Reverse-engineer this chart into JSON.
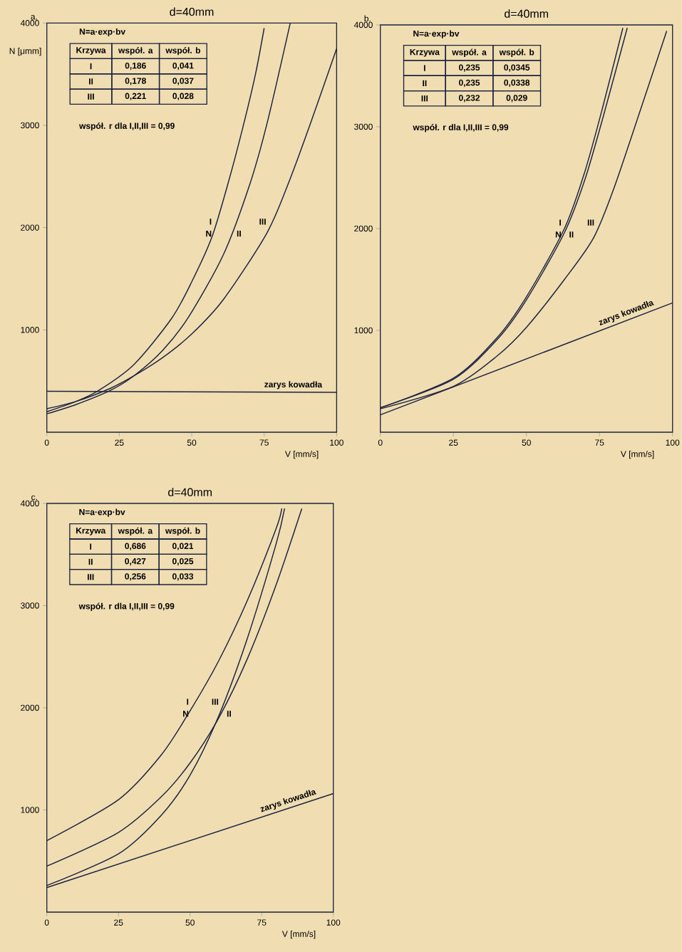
{
  "chart_data": [
    {
      "type": "line",
      "title": "d=40mm",
      "xlabel": "V [mm/s]",
      "ylabel": "N [μmm]",
      "xlim": [
        0,
        100
      ],
      "ylim": [
        0,
        4000
      ],
      "xticks": [
        0,
        25,
        50,
        75,
        100
      ],
      "yticks": [
        1000,
        2000,
        3000,
        4000
      ],
      "series": [
        {
          "name": "I",
          "color": "#1c2340",
          "x": [
            0,
            10,
            18,
            30,
            43,
            50,
            57,
            63,
            68,
            72,
            75
          ],
          "values": [
            200,
            300,
            410,
            660,
            1110,
            1470,
            1910,
            2480,
            3020,
            3500,
            3950
          ]
        },
        {
          "name": "II",
          "color": "#1c2340",
          "x": [
            0,
            10,
            22,
            30,
            40,
            49,
            61,
            70,
            76,
            84
          ],
          "values": [
            180,
            270,
            410,
            550,
            800,
            1130,
            1740,
            2420,
            3020,
            4000
          ]
        },
        {
          "name": "III",
          "color": "#1c2340",
          "x": [
            0,
            10,
            22,
            30,
            40,
            50,
            61,
            76,
            84,
            91.5,
            100
          ],
          "values": [
            230,
            300,
            430,
            550,
            730,
            960,
            1300,
            1950,
            2480,
            3060,
            3750
          ]
        },
        {
          "name": "zarys kowadła",
          "color": "#1c2340",
          "x": [
            0,
            100
          ],
          "values": [
            400,
            390
          ]
        }
      ],
      "annotations": [
        "a.",
        "N=a·exp·bv",
        "Krzywa",
        "współ. a",
        "współ. b",
        "I",
        "0,186",
        "0,041",
        "II",
        "0,178",
        "0,037",
        "III",
        "0,221",
        "0,028",
        "współ. r dla I,II,III = 0,99",
        "N"
      ]
    },
    {
      "type": "line",
      "title": "d=40mm",
      "xlabel": "V [mm/s]",
      "xlim": [
        0,
        100
      ],
      "ylim": [
        0,
        4000
      ],
      "xticks": [
        0,
        25,
        50,
        75,
        100
      ],
      "yticks": [
        1000,
        2000,
        3000,
        4000
      ],
      "series": [
        {
          "name": "I",
          "color": "#1c2340",
          "x": [
            0,
            25,
            40,
            50,
            63,
            70,
            76,
            83
          ],
          "values": [
            240,
            530,
            930,
            1330,
            2000,
            2560,
            3180,
            3970
          ]
        },
        {
          "name": "II",
          "color": "#1c2340",
          "x": [
            0,
            25,
            40,
            50,
            63,
            70,
            76,
            84.5
          ],
          "values": [
            240,
            520,
            910,
            1300,
            1960,
            2480,
            3070,
            3970
          ]
        },
        {
          "name": "III",
          "color": "#1c2340",
          "x": [
            0,
            25,
            40,
            50,
            63,
            73,
            80,
            90,
            98
          ],
          "values": [
            230,
            450,
            750,
            1030,
            1500,
            1910,
            2400,
            3250,
            3940
          ]
        },
        {
          "name": "zarys kowadła",
          "color": "#1c2340",
          "x": [
            0,
            100
          ],
          "values": [
            170,
            1270
          ]
        }
      ],
      "annotations": [
        "b.",
        "N=a·exp·bv",
        "Krzywa",
        "współ. a",
        "współ. b",
        "I",
        "0,235",
        "0,0345",
        "II",
        "0,235",
        "0,0338",
        "III",
        "0,232",
        "0,029",
        "współ. r dla I,II,III = 0,99",
        "N"
      ]
    },
    {
      "type": "line",
      "title": "d=40mm",
      "xlabel": "V [mm/s]",
      "xlim": [
        0,
        100
      ],
      "ylim": [
        0,
        4000
      ],
      "xticks": [
        0,
        25,
        50,
        75,
        100
      ],
      "yticks": [
        1000,
        2000,
        3000,
        4000
      ],
      "series": [
        {
          "name": "I",
          "color": "#1c2340",
          "x": [
            0,
            25,
            40,
            50,
            60,
            70,
            80,
            82
          ],
          "values": [
            700,
            1100,
            1540,
            1970,
            2460,
            3050,
            3750,
            3950
          ]
        },
        {
          "name": "II",
          "color": "#1c2340",
          "x": [
            0,
            25,
            40,
            50,
            60,
            70,
            80,
            89
          ],
          "values": [
            450,
            780,
            1130,
            1460,
            1900,
            2480,
            3200,
            3950
          ]
        },
        {
          "name": "III",
          "color": "#1c2340",
          "x": [
            0,
            25,
            40,
            50,
            60,
            70,
            80,
            83
          ],
          "values": [
            260,
            570,
            950,
            1340,
            1920,
            2680,
            3600,
            3950
          ]
        },
        {
          "name": "zarys kowadła",
          "color": "#1c2340",
          "x": [
            0,
            100
          ],
          "values": [
            240,
            1160
          ]
        }
      ],
      "annotations": [
        "c.",
        "N=a·exp·bv",
        "Krzywa",
        "współ. a",
        "współ. b",
        "I",
        "0,686",
        "0,021",
        "II",
        "0,427",
        "0,025",
        "III",
        "0,256",
        "0,033",
        "współ. r dla I,II,III = 0,99",
        "N"
      ]
    }
  ]
}
